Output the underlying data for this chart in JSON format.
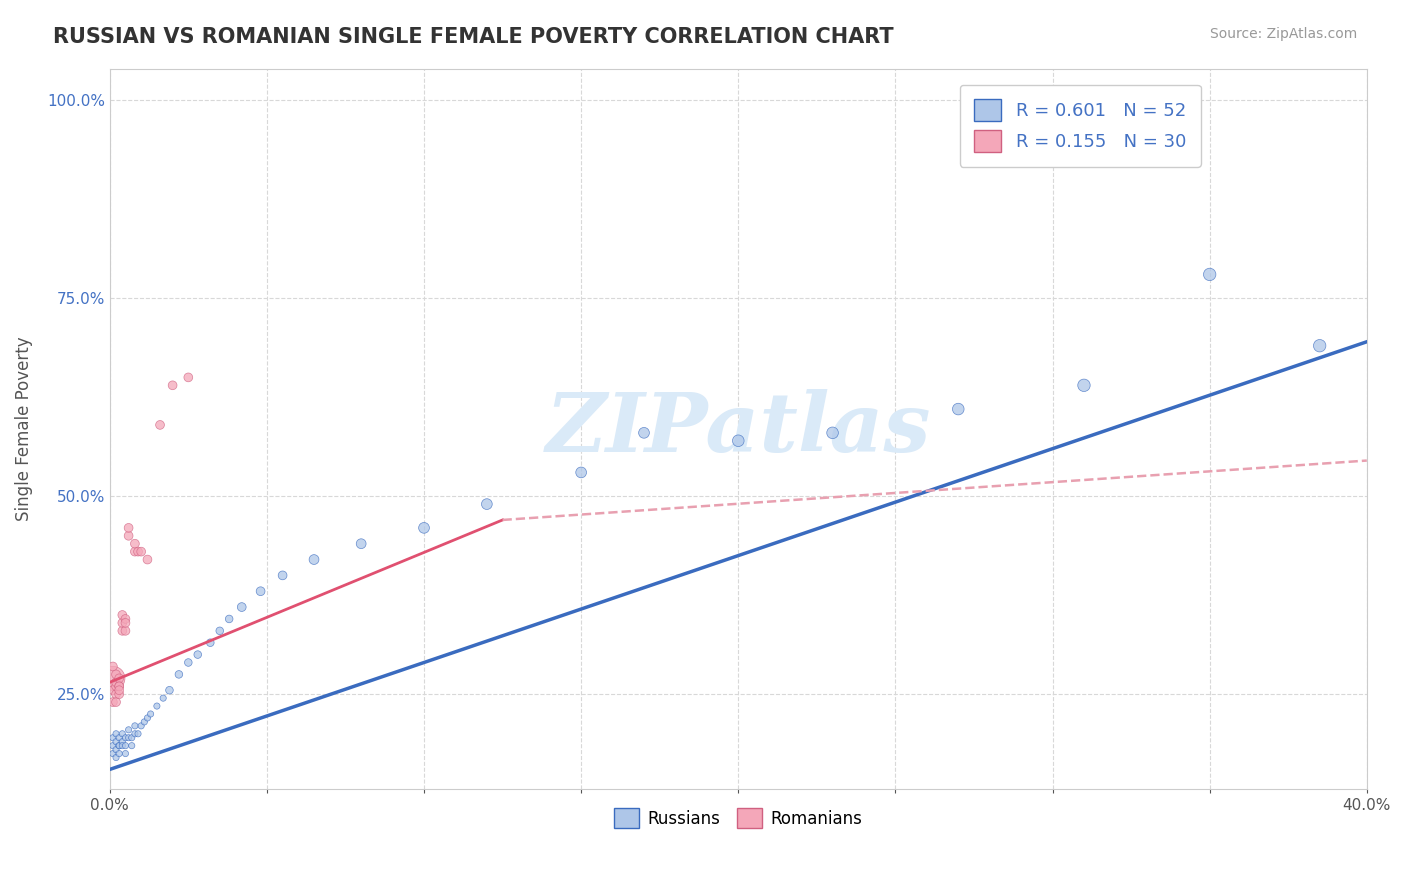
{
  "title": "RUSSIAN VS ROMANIAN SINGLE FEMALE POVERTY CORRELATION CHART",
  "source_text": "Source: ZipAtlas.com",
  "ylabel": "Single Female Poverty",
  "xlim": [
    0.0,
    0.4
  ],
  "ylim": [
    0.13,
    1.04
  ],
  "xticks": [
    0.0,
    0.05,
    0.1,
    0.15,
    0.2,
    0.25,
    0.3,
    0.35,
    0.4
  ],
  "xticklabels": [
    "0.0%",
    "",
    "",
    "",
    "",
    "",
    "",
    "",
    "40.0%"
  ],
  "ytick_positions": [
    0.25,
    0.5,
    0.75,
    1.0
  ],
  "yticklabels": [
    "25.0%",
    "50.0%",
    "75.0%",
    "100.0%"
  ],
  "russian_color": "#aec6e8",
  "romanian_color": "#f4a7b9",
  "russian_line_color": "#3a6bbf",
  "romanian_line_solid_color": "#e05070",
  "romanian_line_dashed_color": "#e8a0b0",
  "background_color": "#ffffff",
  "grid_color": "#d8d8d8",
  "axis_label_color": "#555555",
  "watermark": "ZIPatlas",
  "watermark_color": "#daeaf8",
  "russians_x": [
    0.001,
    0.001,
    0.001,
    0.002,
    0.002,
    0.002,
    0.002,
    0.003,
    0.003,
    0.003,
    0.003,
    0.004,
    0.004,
    0.004,
    0.005,
    0.005,
    0.005,
    0.006,
    0.006,
    0.007,
    0.007,
    0.008,
    0.008,
    0.009,
    0.01,
    0.011,
    0.012,
    0.013,
    0.015,
    0.017,
    0.019,
    0.022,
    0.025,
    0.028,
    0.032,
    0.035,
    0.038,
    0.042,
    0.048,
    0.055,
    0.065,
    0.08,
    0.1,
    0.12,
    0.15,
    0.17,
    0.2,
    0.23,
    0.27,
    0.31,
    0.35,
    0.385
  ],
  "russians_y": [
    0.175,
    0.185,
    0.195,
    0.18,
    0.19,
    0.2,
    0.17,
    0.185,
    0.195,
    0.185,
    0.175,
    0.19,
    0.2,
    0.185,
    0.195,
    0.185,
    0.175,
    0.195,
    0.205,
    0.195,
    0.185,
    0.2,
    0.21,
    0.2,
    0.21,
    0.215,
    0.22,
    0.225,
    0.235,
    0.245,
    0.255,
    0.275,
    0.29,
    0.3,
    0.315,
    0.33,
    0.345,
    0.36,
    0.38,
    0.4,
    0.42,
    0.44,
    0.46,
    0.49,
    0.53,
    0.58,
    0.57,
    0.58,
    0.61,
    0.64,
    0.78,
    0.69
  ],
  "russians_size": [
    20,
    20,
    20,
    20,
    20,
    20,
    20,
    20,
    20,
    20,
    20,
    20,
    20,
    20,
    20,
    20,
    20,
    20,
    20,
    20,
    20,
    20,
    20,
    20,
    20,
    20,
    20,
    20,
    20,
    20,
    30,
    30,
    30,
    30,
    30,
    30,
    30,
    40,
    40,
    40,
    50,
    50,
    60,
    60,
    60,
    60,
    70,
    70,
    70,
    80,
    80,
    80
  ],
  "romanians_x": [
    0.001,
    0.001,
    0.001,
    0.001,
    0.002,
    0.002,
    0.002,
    0.002,
    0.002,
    0.003,
    0.003,
    0.003,
    0.003,
    0.003,
    0.004,
    0.004,
    0.004,
    0.005,
    0.005,
    0.005,
    0.006,
    0.006,
    0.008,
    0.008,
    0.009,
    0.01,
    0.012,
    0.016,
    0.02,
    0.025
  ],
  "romanians_y": [
    0.27,
    0.285,
    0.255,
    0.24,
    0.25,
    0.26,
    0.24,
    0.265,
    0.275,
    0.26,
    0.25,
    0.27,
    0.26,
    0.255,
    0.33,
    0.34,
    0.35,
    0.33,
    0.345,
    0.34,
    0.45,
    0.46,
    0.43,
    0.44,
    0.43,
    0.43,
    0.42,
    0.59,
    0.64,
    0.65
  ],
  "romanians_size": [
    300,
    40,
    40,
    40,
    40,
    40,
    40,
    40,
    40,
    40,
    40,
    40,
    40,
    40,
    40,
    40,
    40,
    40,
    40,
    40,
    40,
    40,
    40,
    40,
    40,
    40,
    40,
    40,
    40,
    40
  ],
  "blue_line_x": [
    0.0,
    0.4
  ],
  "blue_line_y": [
    0.155,
    0.695
  ],
  "pink_solid_line_x": [
    0.0,
    0.125
  ],
  "pink_solid_line_y": [
    0.265,
    0.47
  ],
  "pink_dashed_line_x": [
    0.125,
    0.4
  ],
  "pink_dashed_line_y": [
    0.47,
    0.545
  ]
}
